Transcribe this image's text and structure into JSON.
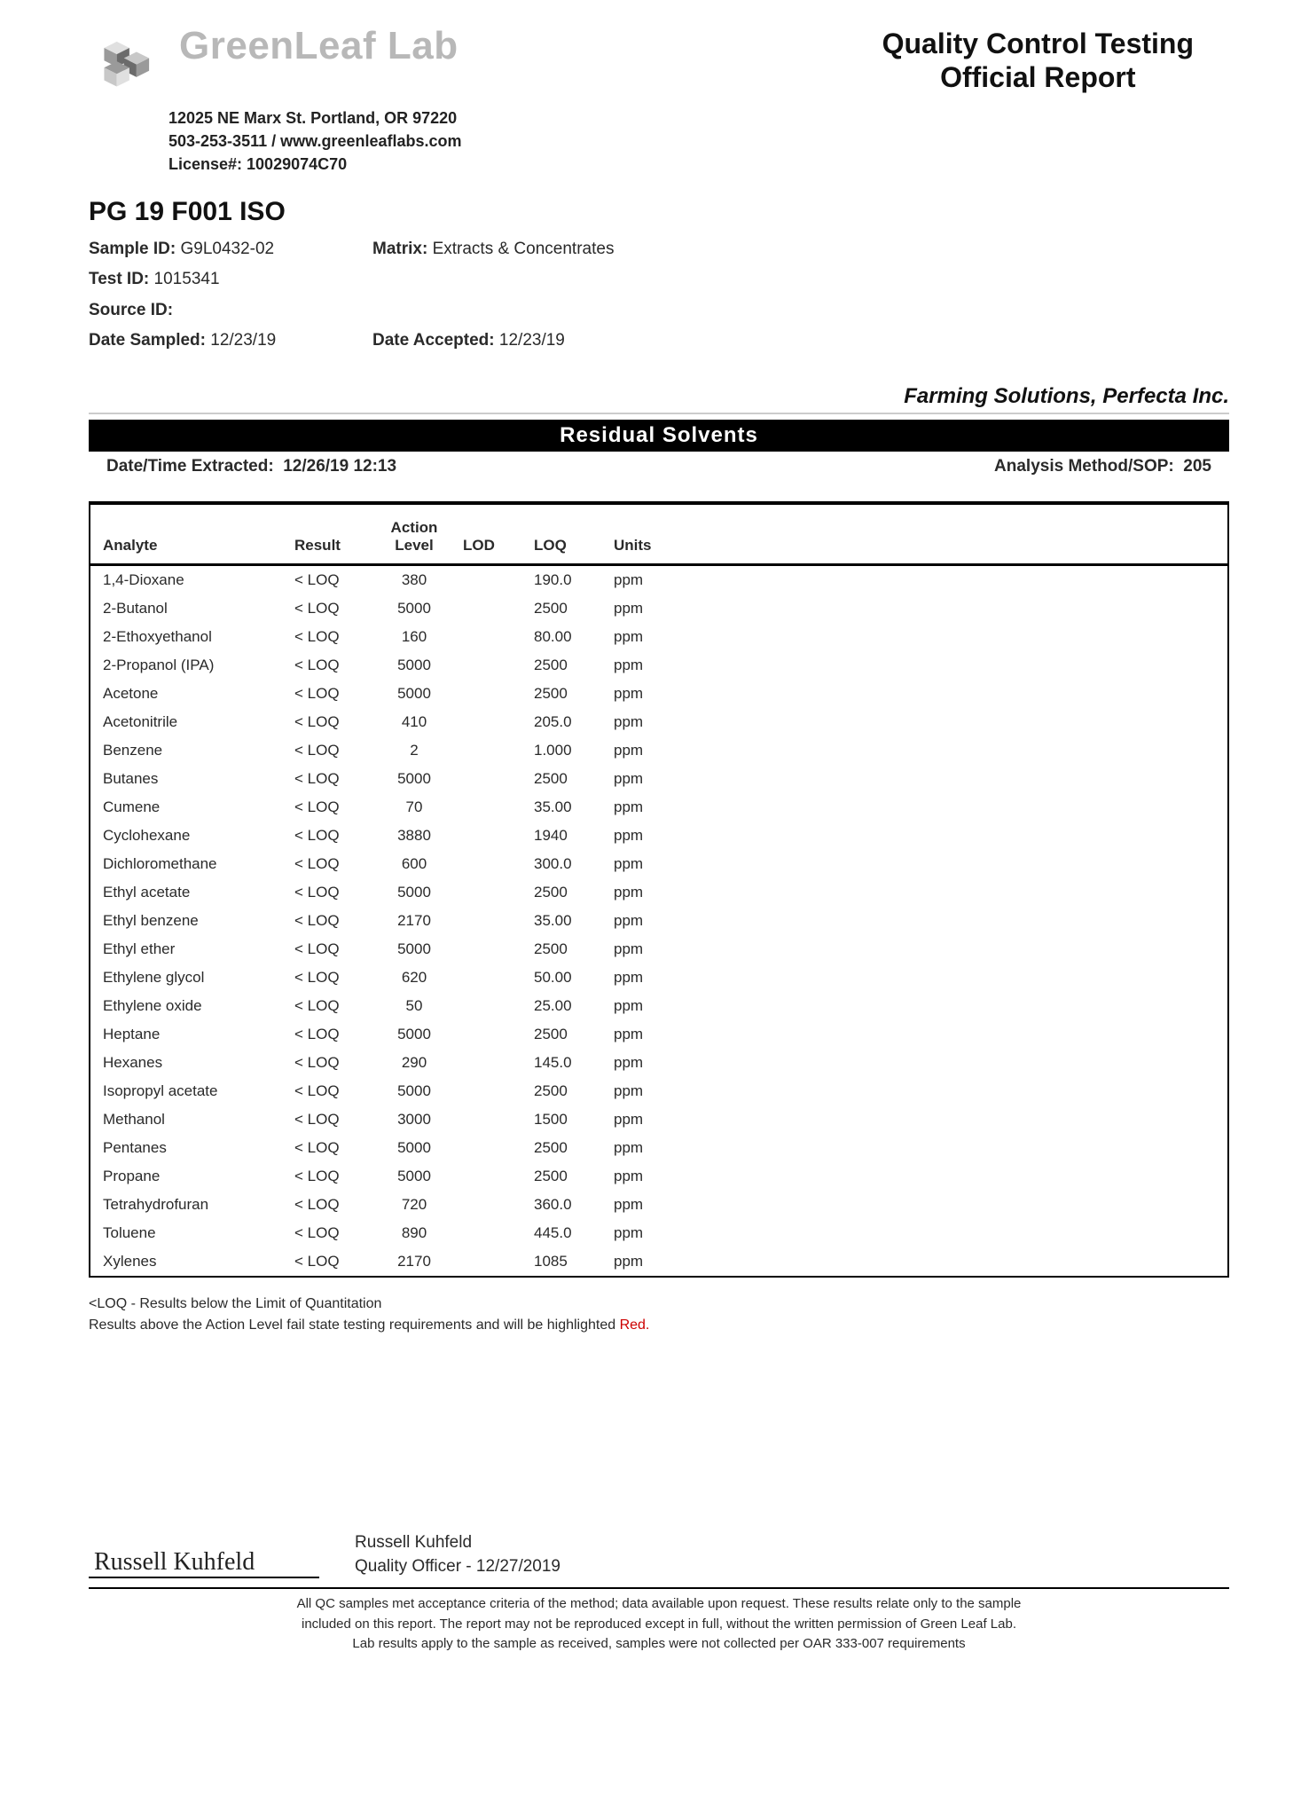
{
  "header": {
    "company_name": "GreenLeaf Lab",
    "address": "12025 NE Marx St. Portland, OR 97220",
    "phone_web": "503-253-3511 / www.greenleaflabs.com",
    "license": "License#: 10029074C70",
    "report_title_1": "Quality Control Testing",
    "report_title_2": "Official Report",
    "logo_colors": [
      "#6b6b6b",
      "#9a9a9a",
      "#c8c8c8",
      "#e0e0e0"
    ]
  },
  "sample": {
    "title": "PG 19 F001 ISO",
    "sample_id_label": "Sample ID:",
    "sample_id": "G9L0432-02",
    "test_id_label": "Test ID:",
    "test_id": "1015341",
    "source_id_label": "Source ID:",
    "source_id": "",
    "matrix_label": "Matrix:",
    "matrix": "Extracts & Concentrates",
    "date_sampled_label": "Date Sampled:",
    "date_sampled": "12/23/19",
    "date_accepted_label": "Date Accepted:",
    "date_accepted": "12/23/19",
    "client": "Farming Solutions, Perfecta Inc."
  },
  "section": {
    "title": "Residual Solvents",
    "extracted_label": "Date/Time Extracted:",
    "extracted": "12/26/19 12:13",
    "method_label": "Analysis Method/SOP:",
    "method": "205"
  },
  "table": {
    "columns": [
      "Analyte",
      "Result",
      "Action Level",
      "LOD",
      "LOQ",
      "Units"
    ],
    "rows": [
      [
        "1,4-Dioxane",
        "< LOQ",
        "380",
        "",
        "190.0",
        "ppm"
      ],
      [
        "2-Butanol",
        "< LOQ",
        "5000",
        "",
        "2500",
        "ppm"
      ],
      [
        "2-Ethoxyethanol",
        "< LOQ",
        "160",
        "",
        "80.00",
        "ppm"
      ],
      [
        "2-Propanol (IPA)",
        "< LOQ",
        "5000",
        "",
        "2500",
        "ppm"
      ],
      [
        "Acetone",
        "< LOQ",
        "5000",
        "",
        "2500",
        "ppm"
      ],
      [
        "Acetonitrile",
        "< LOQ",
        "410",
        "",
        "205.0",
        "ppm"
      ],
      [
        "Benzene",
        "< LOQ",
        "2",
        "",
        "1.000",
        "ppm"
      ],
      [
        "Butanes",
        "< LOQ",
        "5000",
        "",
        "2500",
        "ppm"
      ],
      [
        "Cumene",
        "< LOQ",
        "70",
        "",
        "35.00",
        "ppm"
      ],
      [
        "Cyclohexane",
        "< LOQ",
        "3880",
        "",
        "1940",
        "ppm"
      ],
      [
        "Dichloromethane",
        "< LOQ",
        "600",
        "",
        "300.0",
        "ppm"
      ],
      [
        "Ethyl acetate",
        "< LOQ",
        "5000",
        "",
        "2500",
        "ppm"
      ],
      [
        "Ethyl benzene",
        "< LOQ",
        "2170",
        "",
        "35.00",
        "ppm"
      ],
      [
        "Ethyl ether",
        "< LOQ",
        "5000",
        "",
        "2500",
        "ppm"
      ],
      [
        "Ethylene glycol",
        "< LOQ",
        "620",
        "",
        "50.00",
        "ppm"
      ],
      [
        "Ethylene oxide",
        "< LOQ",
        "50",
        "",
        "25.00",
        "ppm"
      ],
      [
        "Heptane",
        "< LOQ",
        "5000",
        "",
        "2500",
        "ppm"
      ],
      [
        "Hexanes",
        "< LOQ",
        "290",
        "",
        "145.0",
        "ppm"
      ],
      [
        "Isopropyl acetate",
        "< LOQ",
        "5000",
        "",
        "2500",
        "ppm"
      ],
      [
        "Methanol",
        "< LOQ",
        "3000",
        "",
        "1500",
        "ppm"
      ],
      [
        "Pentanes",
        "< LOQ",
        "5000",
        "",
        "2500",
        "ppm"
      ],
      [
        "Propane",
        "< LOQ",
        "5000",
        "",
        "2500",
        "ppm"
      ],
      [
        "Tetrahydrofuran",
        "< LOQ",
        "720",
        "",
        "360.0",
        "ppm"
      ],
      [
        "Toluene",
        "< LOQ",
        "890",
        "",
        "445.0",
        "ppm"
      ],
      [
        "Xylenes",
        "< LOQ",
        "2170",
        "",
        "1085",
        "ppm"
      ]
    ]
  },
  "notes": {
    "line1": "<LOQ - Results below the Limit of Quantitation",
    "line2_prefix": "Results above the Action Level fail state testing requirements and will be highlighted ",
    "line2_red": "Red."
  },
  "signature": {
    "script": "Russell Kuhfeld",
    "name": "Russell Kuhfeld",
    "title_line": "Quality Officer - 12/27/2019"
  },
  "footer": {
    "line1": "All QC samples met acceptance criteria of the method; data available upon request. These results relate only to the sample",
    "line2": "included on this report. The report may not be reproduced except in full, without the written permission of Green Leaf Lab.",
    "line3": "Lab results apply to the sample as received, samples were not collected per OAR 333-007 requirements"
  }
}
